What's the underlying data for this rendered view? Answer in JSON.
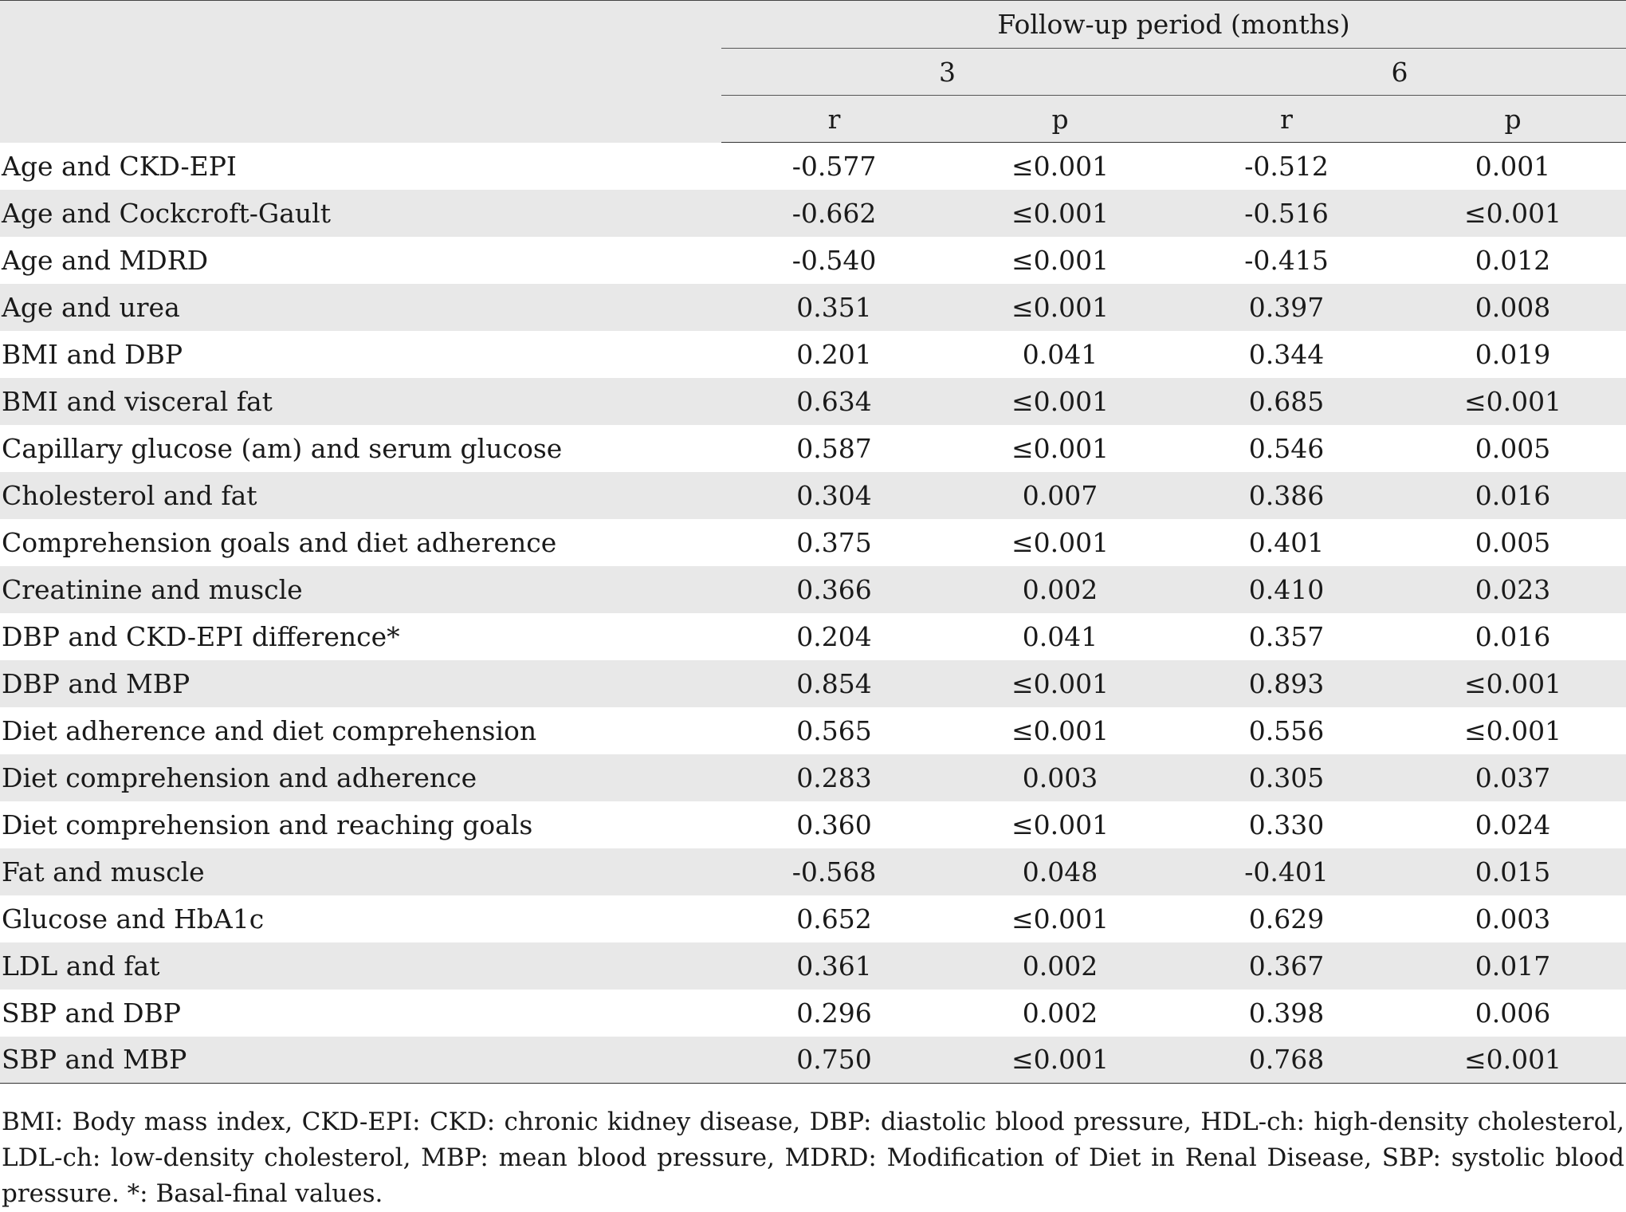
{
  "table": {
    "header": {
      "group_label": "Follow-up period (months)",
      "periods": [
        "3",
        "6"
      ],
      "subcols": [
        "r",
        "p",
        "r",
        "p"
      ]
    },
    "rows": [
      {
        "label": "Age and CKD-EPI",
        "r3": "-0.577",
        "p3": "≤0.001",
        "r6": "-0.512",
        "p6": "0.001"
      },
      {
        "label": "Age and Cockcroft-Gault",
        "r3": "-0.662",
        "p3": "≤0.001",
        "r6": "-0.516",
        "p6": "≤0.001"
      },
      {
        "label": "Age and MDRD",
        "r3": "-0.540",
        "p3": "≤0.001",
        "r6": "-0.415",
        "p6": "0.012"
      },
      {
        "label": "Age and urea",
        "r3": "0.351",
        "p3": "≤0.001",
        "r6": "0.397",
        "p6": "0.008"
      },
      {
        "label": "BMI and DBP",
        "r3": "0.201",
        "p3": "0.041",
        "r6": "0.344",
        "p6": "0.019"
      },
      {
        "label": "BMI and visceral fat",
        "r3": "0.634",
        "p3": "≤0.001",
        "r6": "0.685",
        "p6": "≤0.001"
      },
      {
        "label": "Capillary glucose (am) and serum glucose",
        "r3": "0.587",
        "p3": "≤0.001",
        "r6": "0.546",
        "p6": "0.005"
      },
      {
        "label": "Cholesterol and fat",
        "r3": "0.304",
        "p3": "0.007",
        "r6": "0.386",
        "p6": "0.016"
      },
      {
        "label": "Comprehension goals and diet adherence",
        "r3": "0.375",
        "p3": "≤0.001",
        "r6": "0.401",
        "p6": "0.005"
      },
      {
        "label": "Creatinine and muscle",
        "r3": "0.366",
        "p3": "0.002",
        "r6": "0.410",
        "p6": "0.023"
      },
      {
        "label": "DBP and CKD-EPI difference*",
        "r3": "0.204",
        "p3": "0.041",
        "r6": "0.357",
        "p6": "0.016"
      },
      {
        "label": "DBP and MBP",
        "r3": "0.854",
        "p3": "≤0.001",
        "r6": "0.893",
        "p6": "≤0.001"
      },
      {
        "label": "Diet adherence and diet comprehension",
        "r3": "0.565",
        "p3": "≤0.001",
        "r6": "0.556",
        "p6": "≤0.001"
      },
      {
        "label": "Diet comprehension and adherence",
        "r3": "0.283",
        "p3": "0.003",
        "r6": "0.305",
        "p6": "0.037"
      },
      {
        "label": "Diet comprehension and reaching goals",
        "r3": "0.360",
        "p3": "≤0.001",
        "r6": "0.330",
        "p6": "0.024"
      },
      {
        "label": "Fat and muscle",
        "r3": "-0.568",
        "p3": "0.048",
        "r6": "-0.401",
        "p6": "0.015"
      },
      {
        "label": "Glucose and HbA1c",
        "r3": "0.652",
        "p3": "≤0.001",
        "r6": "0.629",
        "p6": "0.003"
      },
      {
        "label": "LDL and fat",
        "r3": "0.361",
        "p3": "0.002",
        "r6": "0.367",
        "p6": "0.017"
      },
      {
        "label": "SBP and DBP",
        "r3": "0.296",
        "p3": "0.002",
        "r6": "0.398",
        "p6": "0.006"
      },
      {
        "label": "SBP and MBP",
        "r3": "0.750",
        "p3": "≤0.001",
        "r6": "0.768",
        "p6": "≤0.001"
      }
    ]
  },
  "footnote": "BMI: Body mass index, CKD-EPI: CKD: chronic kidney disease, DBP: diastolic blood pressure, HDL-ch: high-density cholesterol, LDL-ch: low-density cholesterol, MBP: mean blood pressure, MDRD: Modification of Diet in Renal Disease, SBP: systolic blood pressure. *: Basal-final values.",
  "colors": {
    "stripe": "#e8e8e8",
    "rule": "#333333",
    "text": "#1a1a1a"
  }
}
